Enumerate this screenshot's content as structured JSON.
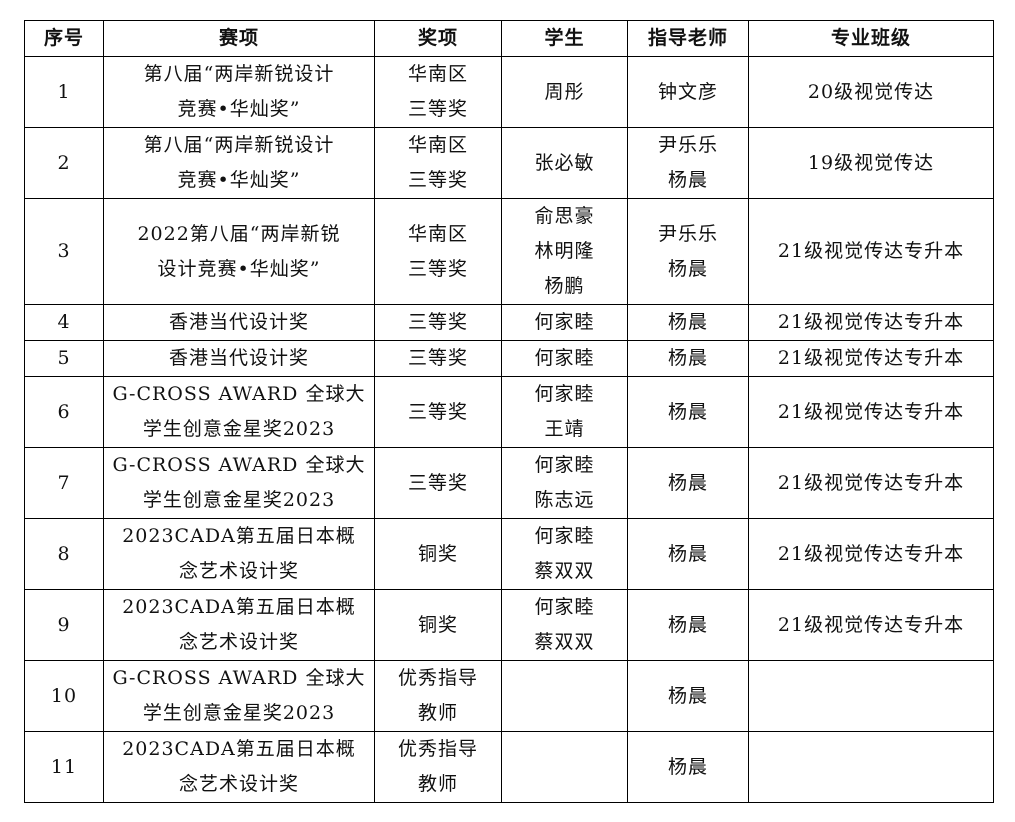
{
  "headers": [
    "序号",
    "赛项",
    "奖项",
    "学生",
    "指导老师",
    "专业班级"
  ],
  "rows": [
    [
      "1",
      "第八届“两岸新锐设计\n竞赛•华灿奖”",
      "华南区\n三等奖",
      "周彤",
      "钟文彦",
      "20级视觉传达"
    ],
    [
      "2",
      "第八届“两岸新锐设计\n竞赛•华灿奖”",
      "华南区\n三等奖",
      "张必敏",
      "尹乐乐\n杨晨",
      "19级视觉传达"
    ],
    [
      "3",
      "2022第八届“两岸新锐\n设计竞赛•华灿奖”",
      "华南区\n三等奖",
      "俞思豪\n林明隆\n杨鹏",
      "尹乐乐\n杨晨",
      "21级视觉传达专升本"
    ],
    [
      "4",
      "香港当代设计奖",
      "三等奖",
      "何家睦",
      "杨晨",
      "21级视觉传达专升本"
    ],
    [
      "5",
      "香港当代设计奖",
      "三等奖",
      "何家睦",
      "杨晨",
      "21级视觉传达专升本"
    ],
    [
      "6",
      "G-CROSS AWARD 全球大\n学生创意金星奖2023",
      "三等奖",
      "何家睦\n王靖",
      "杨晨",
      "21级视觉传达专升本"
    ],
    [
      "7",
      "G-CROSS AWARD 全球大\n学生创意金星奖2023",
      "三等奖",
      "何家睦\n陈志远",
      "杨晨",
      "21级视觉传达专升本"
    ],
    [
      "8",
      "2023CADA第五届日本概\n念艺术设计奖",
      "铜奖",
      "何家睦\n蔡双双",
      "杨晨",
      "21级视觉传达专升本"
    ],
    [
      "9",
      "2023CADA第五届日本概\n念艺术设计奖",
      "铜奖",
      "何家睦\n蔡双双",
      "杨晨",
      "21级视觉传达专升本"
    ],
    [
      "10",
      "G-CROSS AWARD 全球大\n学生创意金星奖2023",
      "优秀指导\n教师",
      "",
      "杨晨",
      ""
    ],
    [
      "11",
      "2023CADA第五届日本概\n念艺术设计奖",
      "优秀指导\n教师",
      "",
      "杨晨",
      ""
    ]
  ]
}
